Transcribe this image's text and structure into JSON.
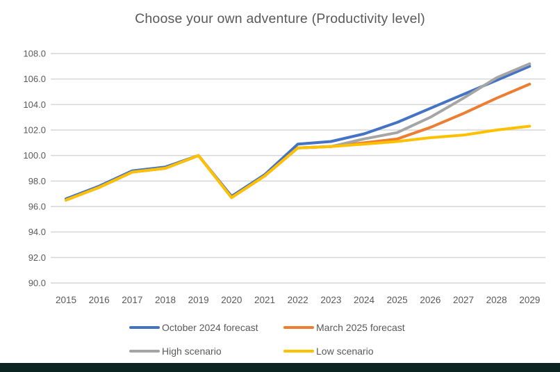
{
  "title": "Choose your own adventure (Productivity level)",
  "chart_data": {
    "type": "line",
    "title": "Choose your own adventure (Productivity level)",
    "categories": [
      "2015",
      "2016",
      "2017",
      "2018",
      "2019",
      "2020",
      "2021",
      "2022",
      "2023",
      "2024",
      "2025",
      "2026",
      "2027",
      "2028",
      "2029"
    ],
    "series": [
      {
        "name": "October 2024 forecast",
        "color": "#4472C4",
        "values": [
          96.6,
          97.6,
          98.8,
          99.1,
          100.0,
          96.8,
          98.5,
          100.9,
          101.1,
          101.7,
          102.6,
          103.7,
          104.8,
          105.9,
          107.0
        ]
      },
      {
        "name": "March 2025 forecast",
        "color": "#ED7D31",
        "values": [
          96.5,
          97.5,
          98.7,
          99.0,
          100.0,
          96.7,
          98.4,
          100.6,
          100.7,
          101.0,
          101.3,
          102.2,
          103.3,
          104.5,
          105.6
        ]
      },
      {
        "name": "High scenario",
        "color": "#A5A5A5",
        "values": [
          96.5,
          97.5,
          98.7,
          99.0,
          100.0,
          96.7,
          98.4,
          100.6,
          100.7,
          101.3,
          101.8,
          103.0,
          104.5,
          106.1,
          107.2
        ]
      },
      {
        "name": "Low scenario",
        "color": "#FFC000",
        "values": [
          96.5,
          97.5,
          98.7,
          99.0,
          100.0,
          96.7,
          98.4,
          100.6,
          100.7,
          100.9,
          101.1,
          101.4,
          101.6,
          102.0,
          102.3
        ]
      }
    ],
    "ylim": [
      90.0,
      108.0
    ],
    "ytick_step": 2.0,
    "yticks": [
      "90.0",
      "92.0",
      "94.0",
      "96.0",
      "98.0",
      "100.0",
      "102.0",
      "104.0",
      "106.0",
      "108.0"
    ],
    "xlabel": "",
    "ylabel": "",
    "grid": "horizontal",
    "legend_position": "bottom"
  },
  "colors": {
    "text": "#595959",
    "gridline": "#D6D6D6",
    "background": "#ffffff",
    "bottom_bar": "#0B2421"
  }
}
